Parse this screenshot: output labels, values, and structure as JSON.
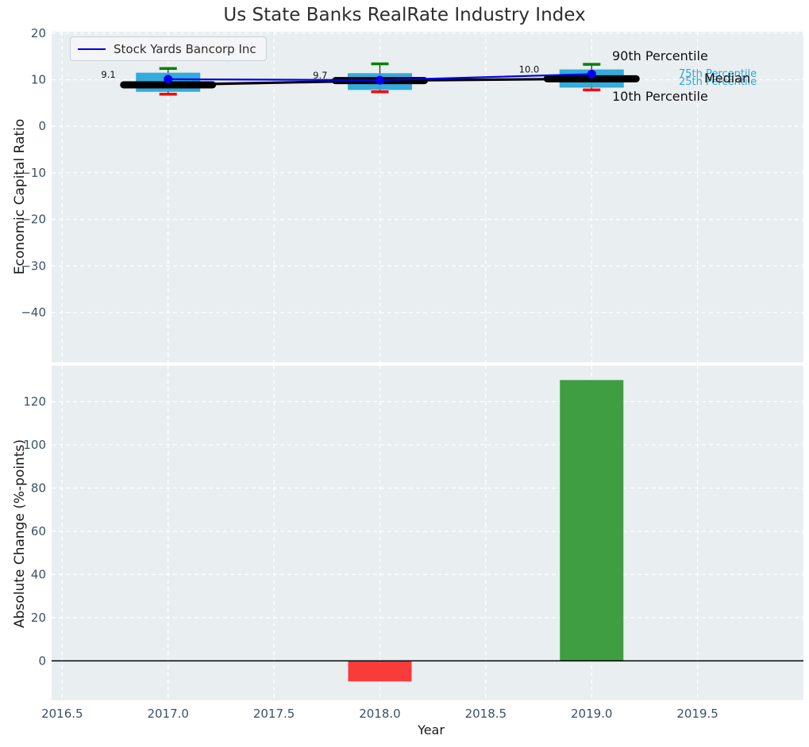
{
  "title": "Us State Banks RealRate Industry Index",
  "legend": {
    "label": "Stock Yards Bancorp Inc",
    "line_color": "#0000ee"
  },
  "colors": {
    "axes_background": "#e9eef0",
    "grid": "#ffffff",
    "tick_label": "#3b5168",
    "box_fill": "#29a8d9",
    "cap_90th": "#008000",
    "cap_10th": "#ff0000",
    "median": "#000000",
    "company_line": "#0000ee",
    "bar_negative": "#fa3b3b",
    "bar_positive": "#3f9e41"
  },
  "chart_data": [
    {
      "type": "box",
      "ylabel": "Economic Capital Ratio",
      "ylim": [
        -50.7,
        20.3
      ],
      "yticks": [
        20,
        10,
        0,
        -10,
        -20,
        -30,
        -40
      ],
      "xlim": [
        2016.45,
        2020.0
      ],
      "xticks": [
        2016.5,
        2017.0,
        2017.5,
        2018.0,
        2018.5,
        2019.0,
        2019.5
      ],
      "show_xtick_labels": false,
      "grid": true,
      "legend_position": "upper left",
      "boxes": [
        {
          "year": 2017,
          "p10": 6.9,
          "p25": 7.4,
          "median": 8.9,
          "p75": 11.5,
          "p90": 12.4
        },
        {
          "year": 2018,
          "p10": 7.4,
          "p25": 7.8,
          "median": 9.8,
          "p75": 11.4,
          "p90": 13.4
        },
        {
          "year": 2019,
          "p10": 7.8,
          "p25": 8.3,
          "median": 10.2,
          "p75": 12.2,
          "p90": 13.3
        }
      ],
      "series": [
        {
          "name": "Stock Yards Bancorp Inc",
          "x": [
            2017,
            2018,
            2019
          ],
          "values": [
            10.1,
            9.9,
            11.2
          ]
        }
      ],
      "annotations": [
        {
          "x": 2017,
          "text": "9.1"
        },
        {
          "x": 2018,
          "text": "9.7"
        },
        {
          "x": 2019,
          "text": "10.0"
        }
      ],
      "percentile_labels": {
        "p90": "90th Percentile",
        "p75": "75th Percentile",
        "median": "Median",
        "p25": "25th Percentile",
        "p10": "10th Percentile"
      }
    },
    {
      "type": "bar",
      "ylabel": "Absolute Change (%-points)",
      "xlabel": "Year",
      "ylim": [
        -18.2,
        136.7
      ],
      "yticks": [
        120,
        100,
        80,
        60,
        40,
        20,
        0
      ],
      "xlim": [
        2016.45,
        2020.0
      ],
      "xticks": [
        2016.5,
        2017.0,
        2017.5,
        2018.0,
        2018.5,
        2019.0,
        2019.5
      ],
      "xtick_labels": [
        "2016.5",
        "2017.0",
        "2017.5",
        "2018.0",
        "2018.5",
        "2019.0",
        "2019.5"
      ],
      "show_xtick_labels": true,
      "grid": true,
      "zero_line": true,
      "bars": [
        {
          "year": 2018,
          "value": -9.5
        },
        {
          "year": 2019,
          "value": 130
        }
      ]
    }
  ]
}
